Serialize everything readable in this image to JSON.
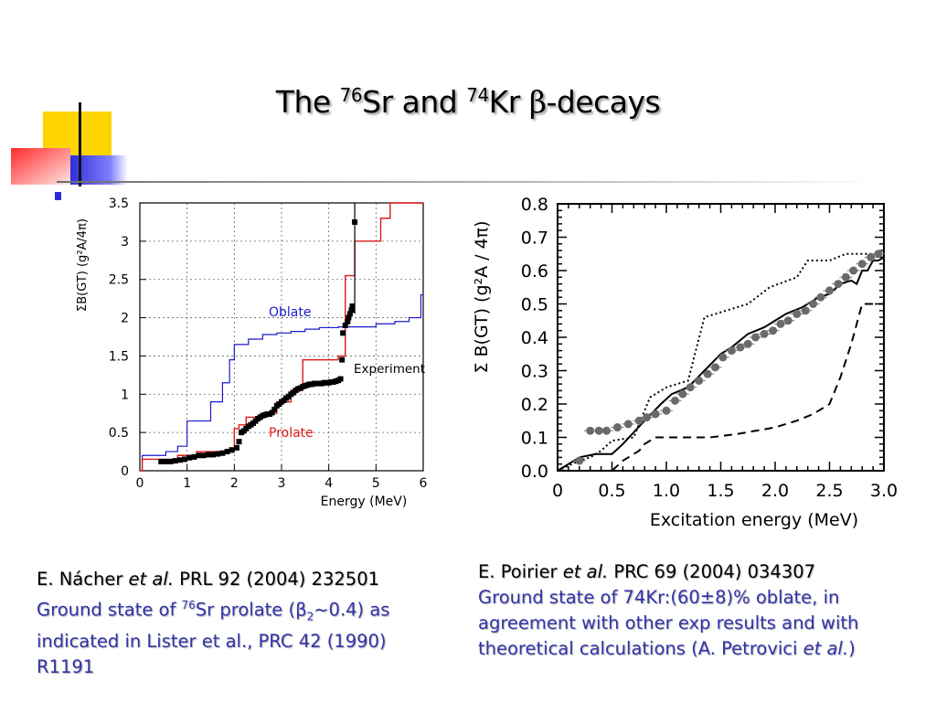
{
  "slide": {
    "title": {
      "pre": "The ",
      "sup1": "76",
      "mid": "Sr and ",
      "sup2": "74",
      "post": "Kr ",
      "beta": "β",
      "tail": "-decays"
    },
    "colors": {
      "accent_yellow": "#ffd400",
      "accent_red": "#ff3b3b",
      "accent_blue": "#2b2bd6",
      "caption_blue": "#3333aa"
    }
  },
  "captions": {
    "left": {
      "author": "E. Nácher ",
      "etal": "et al.",
      "ref": " PRL 92 (2004) 232501",
      "l1a": "Ground state of ",
      "l1sup": "76",
      "l1b": "Sr prolate (β",
      "l1sub": "2",
      "l1c": "~0.4) as",
      "l2": "indicated in Lister et al., PRC 42 (1990)",
      "l3": "R1191"
    },
    "right": {
      "author": "E. Poirier ",
      "etal": "et al.",
      "ref": " PRC 69 (2004) 034307",
      "l1": "Ground state of 74Kr:(60±8)% oblate, in",
      "l2": "agreement with other exp results  and with",
      "l3a": "theoretical calculations (A. Petrovici ",
      "l3etal": "et al.",
      "l3b": ")"
    }
  },
  "chart_data": [
    {
      "type": "line",
      "xlabel": "Energy (MeV)",
      "ylabel": "ΣB(GT) (g²A/4π)",
      "xlim": [
        0,
        6
      ],
      "ylim": [
        0,
        3.5
      ],
      "xticks": [
        "0",
        "1",
        "2",
        "3",
        "4",
        "5",
        "6"
      ],
      "yticks": [
        "0",
        "0.5",
        "1",
        "1.5",
        "2",
        "2.5",
        "3",
        "3.5"
      ],
      "grid": true,
      "series": [
        {
          "name": "Oblate",
          "color": "#1a1acc",
          "style": "step",
          "x": [
            0,
            0.05,
            0.55,
            0.8,
            1.0,
            1.5,
            1.75,
            1.9,
            2.0,
            2.3,
            2.6,
            2.9,
            3.2,
            3.5,
            3.8,
            4.2,
            5.0,
            5.4,
            5.7,
            5.95,
            6.0
          ],
          "y": [
            0,
            0.2,
            0.25,
            0.32,
            0.65,
            0.9,
            1.15,
            1.45,
            1.65,
            1.72,
            1.78,
            1.8,
            1.82,
            1.85,
            1.87,
            1.88,
            1.92,
            1.95,
            2.0,
            2.3,
            2.3
          ]
        },
        {
          "name": "Prolate",
          "color": "#dd1a1a",
          "style": "step",
          "x": [
            0,
            0.05,
            0.8,
            1.2,
            1.9,
            2.0,
            2.1,
            2.25,
            2.6,
            2.9,
            3.2,
            3.45,
            3.6,
            4.2,
            4.35,
            4.45,
            4.55,
            4.6,
            4.8,
            5.1,
            5.3,
            6.0
          ],
          "y": [
            0,
            0.15,
            0.2,
            0.25,
            0.3,
            0.55,
            0.6,
            0.7,
            0.75,
            0.9,
            1.05,
            1.45,
            1.45,
            1.5,
            2.55,
            2.55,
            3.0,
            3.0,
            3.0,
            3.3,
            3.5,
            3.5
          ]
        },
        {
          "name": "Experiment",
          "color": "#000000",
          "style": "points",
          "x": [
            0.45,
            0.55,
            0.65,
            0.75,
            0.85,
            0.95,
            1.05,
            1.15,
            1.25,
            1.35,
            1.45,
            1.55,
            1.65,
            1.75,
            1.85,
            1.95,
            2.05,
            2.1,
            2.15,
            2.2,
            2.25,
            2.3,
            2.35,
            2.4,
            2.45,
            2.5,
            2.55,
            2.6,
            2.65,
            2.7,
            2.75,
            2.8,
            2.85,
            2.9,
            2.95,
            3.0,
            3.05,
            3.1,
            3.15,
            3.2,
            3.25,
            3.3,
            3.35,
            3.4,
            3.45,
            3.5,
            3.55,
            3.6,
            3.65,
            3.7,
            3.75,
            3.8,
            3.85,
            3.9,
            3.95,
            4.0,
            4.05,
            4.1,
            4.15,
            4.2,
            4.25,
            4.28,
            4.3,
            4.35,
            4.4,
            4.42,
            4.45,
            4.48,
            4.5,
            4.55
          ],
          "y": [
            0.12,
            0.12,
            0.12,
            0.13,
            0.14,
            0.15,
            0.17,
            0.18,
            0.2,
            0.2,
            0.21,
            0.21,
            0.22,
            0.23,
            0.25,
            0.27,
            0.3,
            0.38,
            0.5,
            0.52,
            0.55,
            0.58,
            0.6,
            0.62,
            0.65,
            0.68,
            0.7,
            0.72,
            0.73,
            0.74,
            0.74,
            0.76,
            0.8,
            0.85,
            0.87,
            0.9,
            0.92,
            0.95,
            0.97,
            1.0,
            1.02,
            1.05,
            1.07,
            1.08,
            1.1,
            1.11,
            1.12,
            1.13,
            1.13,
            1.14,
            1.14,
            1.14,
            1.14,
            1.15,
            1.15,
            1.15,
            1.16,
            1.16,
            1.17,
            1.18,
            1.2,
            1.45,
            1.8,
            1.9,
            1.95,
            2.0,
            2.05,
            2.1,
            2.15,
            3.25
          ]
        }
      ],
      "annotations": [
        "Oblate",
        "Prolate",
        "Experiment"
      ]
    },
    {
      "type": "line",
      "xlabel": "Excitation energy (MeV)",
      "ylabel": "Σ B(GT) (g²A / 4π)",
      "xlim": [
        0,
        3.0
      ],
      "ylim": [
        0,
        0.8
      ],
      "xticks": [
        "0",
        "0.5",
        "1.0",
        "1.5",
        "2.0",
        "2.5",
        "3.0"
      ],
      "yticks": [
        "0.0",
        "0.1",
        "0.2",
        "0.3",
        "0.4",
        "0.5",
        "0.6",
        "0.7",
        "0.8"
      ],
      "grid": false,
      "series": [
        {
          "style": "points",
          "color": "#6a6a6a",
          "x": [
            0.2,
            0.3,
            0.38,
            0.45,
            0.55,
            0.65,
            0.75,
            0.82,
            0.9,
            1.0,
            1.08,
            1.15,
            1.22,
            1.3,
            1.38,
            1.45,
            1.52,
            1.6,
            1.68,
            1.75,
            1.82,
            1.9,
            1.98,
            2.05,
            2.12,
            2.2,
            2.28,
            2.35,
            2.42,
            2.5,
            2.58,
            2.65,
            2.72,
            2.8,
            2.88,
            2.95
          ],
          "y": [
            0.03,
            0.12,
            0.12,
            0.12,
            0.13,
            0.14,
            0.15,
            0.16,
            0.17,
            0.18,
            0.21,
            0.23,
            0.25,
            0.27,
            0.29,
            0.31,
            0.34,
            0.36,
            0.37,
            0.38,
            0.4,
            0.41,
            0.42,
            0.44,
            0.45,
            0.47,
            0.48,
            0.5,
            0.52,
            0.54,
            0.56,
            0.58,
            0.6,
            0.62,
            0.64,
            0.65
          ]
        },
        {
          "style": "solid",
          "color": "#000000",
          "x": [
            0.0,
            0.2,
            0.35,
            0.5,
            0.6,
            0.8,
            0.95,
            1.05,
            1.2,
            1.35,
            1.5,
            1.6,
            1.75,
            1.9,
            2.0,
            2.1,
            2.25,
            2.4,
            2.5,
            2.6,
            2.7,
            2.75,
            2.8,
            2.85,
            2.9,
            2.95,
            3.0
          ],
          "y": [
            0.0,
            0.04,
            0.05,
            0.05,
            0.08,
            0.15,
            0.2,
            0.23,
            0.25,
            0.3,
            0.35,
            0.37,
            0.41,
            0.43,
            0.45,
            0.47,
            0.49,
            0.52,
            0.53,
            0.56,
            0.57,
            0.56,
            0.6,
            0.6,
            0.63,
            0.63,
            0.64
          ]
        },
        {
          "style": "dotted",
          "color": "#000000",
          "x": [
            0.0,
            0.2,
            0.3,
            0.4,
            0.5,
            0.7,
            0.85,
            1.0,
            1.2,
            1.35,
            1.45,
            1.55,
            1.75,
            1.95,
            2.2,
            2.3,
            2.5,
            2.65,
            2.8,
            3.0
          ],
          "y": [
            0.0,
            0.03,
            0.04,
            0.06,
            0.09,
            0.1,
            0.22,
            0.25,
            0.27,
            0.46,
            0.47,
            0.48,
            0.5,
            0.55,
            0.58,
            0.63,
            0.63,
            0.65,
            0.65,
            0.65
          ]
        },
        {
          "style": "dashed",
          "color": "#000000",
          "x": [
            0.0,
            0.3,
            0.5,
            0.6,
            0.75,
            0.8,
            0.9,
            1.0,
            1.15,
            1.4,
            1.65,
            2.0,
            2.2,
            2.35,
            2.5,
            2.6,
            2.7,
            2.8,
            2.9,
            3.0
          ],
          "y": [
            0.0,
            0.0,
            0.0,
            0.03,
            0.06,
            0.08,
            0.1,
            0.1,
            0.1,
            0.1,
            0.11,
            0.13,
            0.15,
            0.17,
            0.2,
            0.28,
            0.38,
            0.5,
            0.5,
            0.5
          ]
        }
      ]
    }
  ]
}
